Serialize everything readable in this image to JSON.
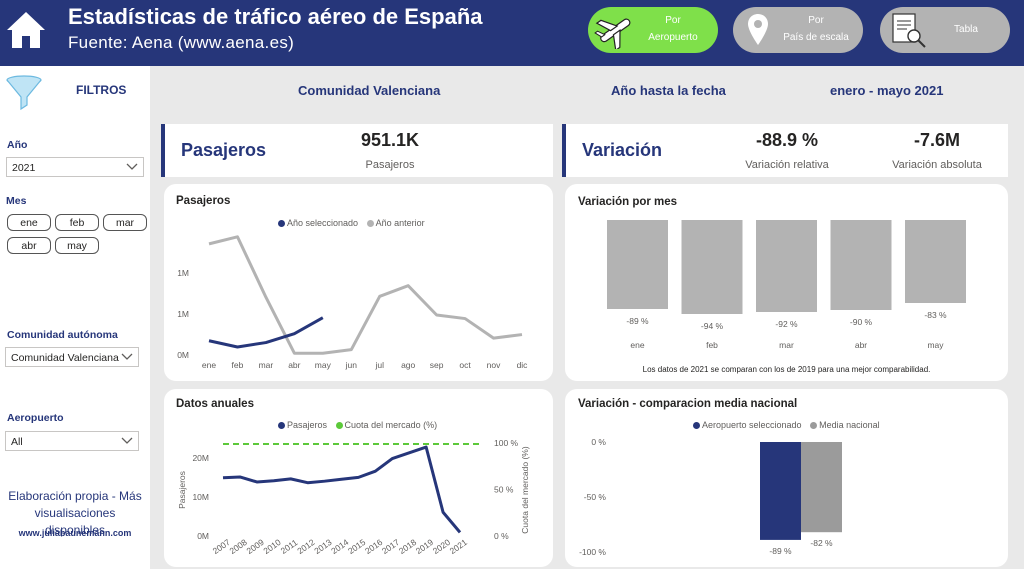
{
  "header": {
    "title": "Estadísticas de tráfico aéreo de España",
    "subtitle": "Fuente: Aena (www.aena.es)",
    "nav": [
      {
        "label_1": "Por",
        "label_2": "Aeropuerto",
        "icon": "airplane-icon",
        "active": true
      },
      {
        "label_1": "Por",
        "label_2": "País de escala",
        "icon": "location-pin-icon",
        "active": false
      },
      {
        "label_1": "Tabla",
        "label_2": "",
        "icon": "document-search-icon",
        "active": false
      }
    ]
  },
  "sidebar": {
    "filters_label": "FILTROS",
    "year_label": "Año",
    "year_value": "2021",
    "month_label": "Mes",
    "months": [
      "ene",
      "feb",
      "mar",
      "abr",
      "may"
    ],
    "region_label": "Comunidad autónoma",
    "region_value": "Comunidad Valenciana",
    "airport_label": "Aeropuerto",
    "airport_value": "All",
    "credit": "Elaboración propia - Más visualisaciones disponibles",
    "website": "www.juliabaunemann.com"
  },
  "context": {
    "region": "Comunidad Valenciana",
    "period_label": "Año hasta la fecha",
    "period_value": "enero - mayo 2021"
  },
  "kpi_passengers": {
    "title": "Pasajeros",
    "value": "951.1K",
    "caption": "Pasajeros"
  },
  "kpi_variation": {
    "title": "Variación",
    "relative_value": "-88.9 %",
    "relative_caption": "Variación relativa",
    "absolute_value": "-7.6M",
    "absolute_caption": "Variación absoluta"
  },
  "chart_data": [
    {
      "id": "pasajeros",
      "type": "line",
      "title": "Pasajeros",
      "categories": [
        "ene",
        "feb",
        "mar",
        "abr",
        "may",
        "jun",
        "jul",
        "ago",
        "sep",
        "oct",
        "nov",
        "dic"
      ],
      "y_ticks": [
        "0M",
        "1M",
        "1M"
      ],
      "ylim": [
        0,
        1.35
      ],
      "series": [
        {
          "name": "Año seleccionado",
          "color": "#26367a",
          "values": [
            0.16,
            0.09,
            0.14,
            0.24,
            0.42,
            null,
            null,
            null,
            null,
            null,
            null,
            null
          ]
        },
        {
          "name": "Año anterior",
          "color": "#b3b3b3",
          "values": [
            1.25,
            1.33,
            0.65,
            0.02,
            0.02,
            0.06,
            0.66,
            0.78,
            0.45,
            0.41,
            0.19,
            0.23
          ]
        }
      ]
    },
    {
      "id": "variacion_mes",
      "type": "bar",
      "title": "Variación por mes",
      "categories": [
        "ene",
        "feb",
        "mar",
        "abr",
        "may"
      ],
      "values": [
        -89,
        -94,
        -92,
        -90,
        -83
      ],
      "labels": [
        "-89 %",
        "-94 %",
        "-92 %",
        "-90 %",
        "-83 %"
      ],
      "color": "#b3b3b3",
      "note": "Los datos de 2021 se comparan con los de 2019 para una mejor comparabilidad."
    },
    {
      "id": "datos_anuales",
      "type": "line",
      "title": "Datos anuales",
      "categories": [
        "2007",
        "2008",
        "2009",
        "2010",
        "2011",
        "2012",
        "2013",
        "2014",
        "2015",
        "2016",
        "2017",
        "2018",
        "2019",
        "2020",
        "2021"
      ],
      "y_ticks": [
        "0M",
        "10M",
        "20M"
      ],
      "y2_ticks": [
        "0 %",
        "50 %",
        "100 %"
      ],
      "ylabel": "Pasajeros",
      "y2label": "Cuota del mercado (%)",
      "ylim": [
        0,
        24
      ],
      "series": [
        {
          "name": "Pasajeros",
          "color": "#26367a",
          "values": [
            15.2,
            15.4,
            14.1,
            14.4,
            14.9,
            13.9,
            14.3,
            14.8,
            15.3,
            16.9,
            20.2,
            21.7,
            23.2,
            6.2,
            0.95
          ]
        },
        {
          "name": "Cuota del mercado (%)",
          "color": "#5cc93a",
          "values": [
            100,
            100,
            100,
            100,
            100,
            100,
            100,
            100,
            100,
            100,
            100,
            100,
            100,
            100,
            100
          ]
        }
      ]
    },
    {
      "id": "comparacion_media",
      "type": "bar",
      "title": "Variación - comparacion media nacional",
      "categories": [
        "Aeropuerto seleccionado",
        "Media nacional"
      ],
      "values": [
        -89,
        -82
      ],
      "labels": [
        "-89 %",
        "-82 %"
      ],
      "colors": [
        "#26367a",
        "#9b9b9b"
      ],
      "y_ticks": [
        "0 %",
        "-50 %",
        "-100 %"
      ],
      "ylim": [
        -100,
        0
      ]
    }
  ]
}
